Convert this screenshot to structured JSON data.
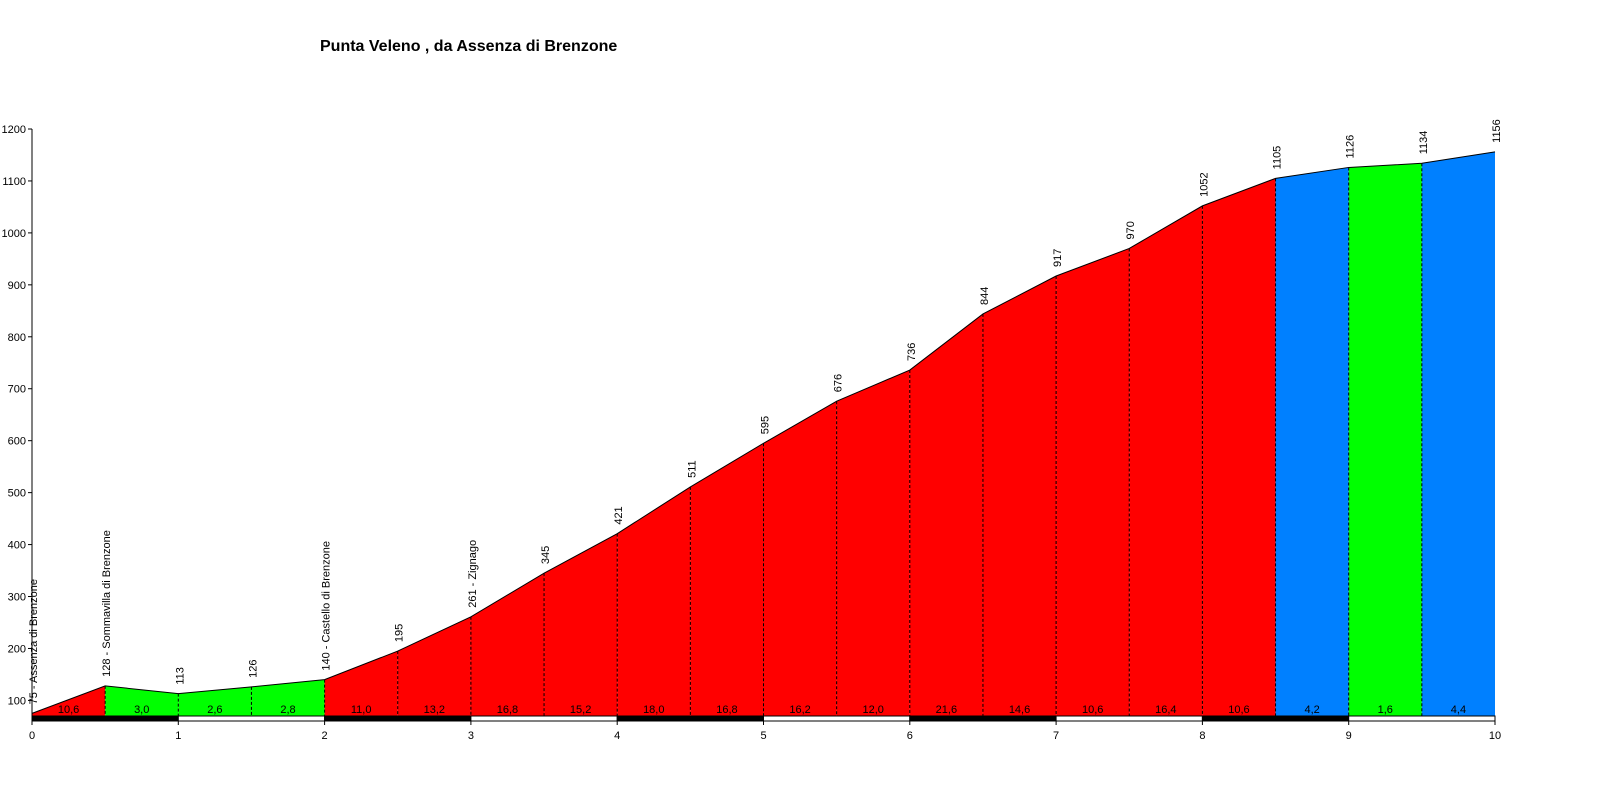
{
  "chart_data": {
    "type": "area",
    "title": "Punta Veleno , da Assenza di Brenzone",
    "xlabel": "",
    "ylabel": "",
    "xlim": [
      0,
      10
    ],
    "ylim": [
      70,
      1200
    ],
    "x_ticks": [
      0,
      1,
      2,
      3,
      4,
      5,
      6,
      7,
      8,
      9,
      10
    ],
    "y_ticks": [
      100,
      200,
      300,
      400,
      500,
      600,
      700,
      800,
      900,
      1000,
      1100,
      1200
    ],
    "points": [
      {
        "x": 0.0,
        "y": 75,
        "label": "75 - Assenza di Brenzone"
      },
      {
        "x": 0.5,
        "y": 128,
        "label": "128 - Sommavilla di Brenzone"
      },
      {
        "x": 1.0,
        "y": 113,
        "label": "113"
      },
      {
        "x": 1.5,
        "y": 126,
        "label": "126"
      },
      {
        "x": 2.0,
        "y": 140,
        "label": "140 - Castello di Brenzone"
      },
      {
        "x": 2.5,
        "y": 195,
        "label": "195"
      },
      {
        "x": 3.0,
        "y": 261,
        "label": "261 - Zignago"
      },
      {
        "x": 3.5,
        "y": 345,
        "label": "345"
      },
      {
        "x": 4.0,
        "y": 421,
        "label": "421"
      },
      {
        "x": 4.5,
        "y": 511,
        "label": "511"
      },
      {
        "x": 5.0,
        "y": 595,
        "label": "595"
      },
      {
        "x": 5.5,
        "y": 676,
        "label": "676"
      },
      {
        "x": 6.0,
        "y": 736,
        "label": "736"
      },
      {
        "x": 6.5,
        "y": 844,
        "label": "844"
      },
      {
        "x": 7.0,
        "y": 917,
        "label": "917"
      },
      {
        "x": 7.5,
        "y": 970,
        "label": "970"
      },
      {
        "x": 8.0,
        "y": 1052,
        "label": "1052"
      },
      {
        "x": 8.5,
        "y": 1105,
        "label": "1105"
      },
      {
        "x": 9.0,
        "y": 1126,
        "label": "1126"
      },
      {
        "x": 9.5,
        "y": 1134,
        "label": "1134"
      },
      {
        "x": 10.0,
        "y": 1156,
        "label": "1156"
      }
    ],
    "segments": [
      {
        "from": 0.0,
        "to": 0.5,
        "grade": "10,6",
        "color": "#ff0000"
      },
      {
        "from": 0.5,
        "to": 1.0,
        "grade": "3,0",
        "color": "#00ff00"
      },
      {
        "from": 1.0,
        "to": 1.5,
        "grade": "2,6",
        "color": "#00ff00"
      },
      {
        "from": 1.5,
        "to": 2.0,
        "grade": "2,8",
        "color": "#00ff00"
      },
      {
        "from": 2.0,
        "to": 2.5,
        "grade": "11,0",
        "color": "#ff0000"
      },
      {
        "from": 2.5,
        "to": 3.0,
        "grade": "13,2",
        "color": "#ff0000"
      },
      {
        "from": 3.0,
        "to": 3.5,
        "grade": "16,8",
        "color": "#ff0000"
      },
      {
        "from": 3.5,
        "to": 4.0,
        "grade": "15,2",
        "color": "#ff0000"
      },
      {
        "from": 4.0,
        "to": 4.5,
        "grade": "18,0",
        "color": "#ff0000"
      },
      {
        "from": 4.5,
        "to": 5.0,
        "grade": "16,8",
        "color": "#ff0000"
      },
      {
        "from": 5.0,
        "to": 5.5,
        "grade": "16,2",
        "color": "#ff0000"
      },
      {
        "from": 5.5,
        "to": 6.0,
        "grade": "12,0",
        "color": "#ff0000"
      },
      {
        "from": 6.0,
        "to": 6.5,
        "grade": "21,6",
        "color": "#ff0000"
      },
      {
        "from": 6.5,
        "to": 7.0,
        "grade": "14,6",
        "color": "#ff0000"
      },
      {
        "from": 7.0,
        "to": 7.5,
        "grade": "10,6",
        "color": "#ff0000"
      },
      {
        "from": 7.5,
        "to": 8.0,
        "grade": "16,4",
        "color": "#ff0000"
      },
      {
        "from": 8.0,
        "to": 8.5,
        "grade": "10,6",
        "color": "#ff0000"
      },
      {
        "from": 8.5,
        "to": 9.0,
        "grade": "4,2",
        "color": "#0080ff"
      },
      {
        "from": 9.0,
        "to": 9.5,
        "grade": "1,6",
        "color": "#00ff00"
      },
      {
        "from": 9.5,
        "to": 10.0,
        "grade": "4,4",
        "color": "#0080ff"
      }
    ],
    "grid": false,
    "legend": "none"
  },
  "colors": {
    "steep": "#ff0000",
    "moderate": "#0080ff",
    "easy": "#00ff00",
    "axis": "#000000",
    "km_bar_dark": "#000000",
    "km_bar_light": "#ffffff"
  }
}
